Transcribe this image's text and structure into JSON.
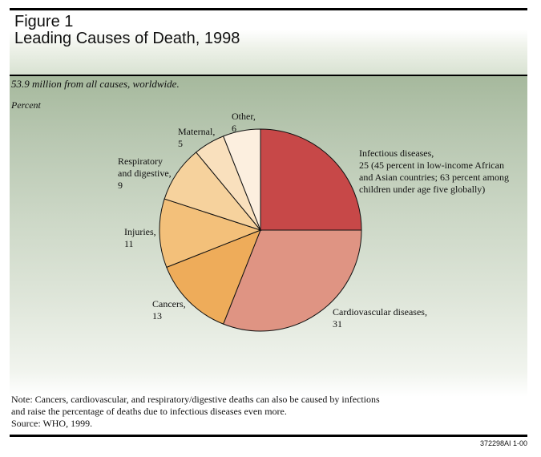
{
  "figure": {
    "label": "Figure 1",
    "title": "Leading Causes of Death, 1998",
    "subtitle": "53.9 million from all causes, worldwide.",
    "unit": "Percent"
  },
  "chart_data": {
    "type": "pie",
    "title": "Leading Causes of Death, 1998",
    "unit": "Percent",
    "total_label": "53.9 million from all causes, worldwide.",
    "slices": [
      {
        "name": "Infectious diseases",
        "value": 25,
        "color": "#c74848",
        "label_lines": [
          "Infectious diseases,",
          "25 (45 percent in low-income African",
          "and Asian countries; 63 percent among",
          "children under age five globally)"
        ]
      },
      {
        "name": "Cardiovascular diseases",
        "value": 31,
        "color": "#df9483",
        "label_lines": [
          "Cardiovascular diseases,",
          "31"
        ]
      },
      {
        "name": "Cancers",
        "value": 13,
        "color": "#eeac5a",
        "label_lines": [
          "Cancers,",
          "13"
        ]
      },
      {
        "name": "Injuries",
        "value": 11,
        "color": "#f3c07a",
        "label_lines": [
          "Injuries,",
          "11"
        ]
      },
      {
        "name": "Respiratory and digestive",
        "value": 9,
        "color": "#f6d29d",
        "label_lines": [
          "Respiratory",
          "and digestive,",
          "9"
        ]
      },
      {
        "name": "Maternal",
        "value": 5,
        "color": "#f9e0bd",
        "label_lines": [
          "Maternal,",
          "5"
        ]
      },
      {
        "name": "Other",
        "value": 6,
        "color": "#fcefdf",
        "label_lines": [
          "Other,",
          "6"
        ]
      }
    ]
  },
  "notes": {
    "line1": "Note:  Cancers, cardiovascular, and respiratory/digestive deaths can also be caused by infections",
    "line2": "and raise the percentage of deaths due to infectious diseases even more.",
    "source": "Source: WHO, 1999."
  },
  "code_id": "372298AI 1-00"
}
